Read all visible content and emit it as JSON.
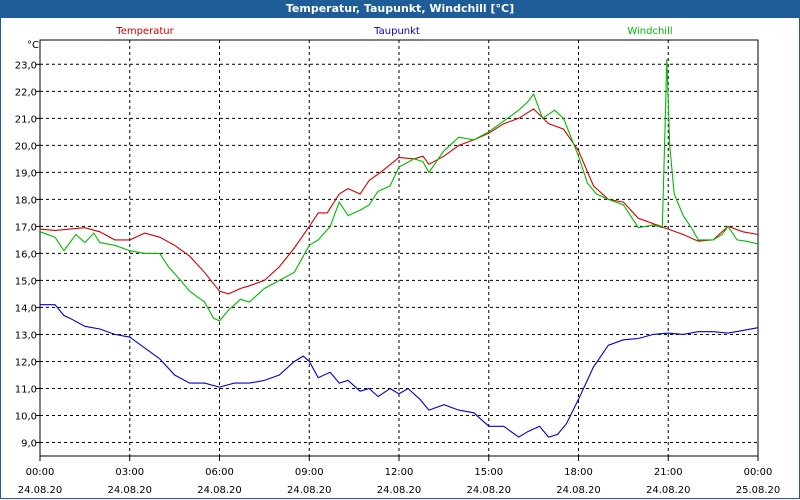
{
  "window": {
    "title": "Temperatur, Taupunkt, Windchill [°C]"
  },
  "chart_data": {
    "type": "line",
    "unit": "°C",
    "legend_placement": "top",
    "grid": true,
    "xlim": [
      0,
      24
    ],
    "ylim": [
      8.5,
      23.9
    ],
    "y_ticks": [
      "9,0",
      "10,0",
      "11,0",
      "12,0",
      "13,0",
      "14,0",
      "15,0",
      "16,0",
      "17,0",
      "18,0",
      "19,0",
      "20,0",
      "21,0",
      "22,0",
      "23,0"
    ],
    "y_tick_values": [
      9,
      10,
      11,
      12,
      13,
      14,
      15,
      16,
      17,
      18,
      19,
      20,
      21,
      22,
      23
    ],
    "x_ticks": [
      {
        "time": "00:00",
        "date": "24.08.20"
      },
      {
        "time": "03:00",
        "date": "24.08.20"
      },
      {
        "time": "06:00",
        "date": "24.08.20"
      },
      {
        "time": "09:00",
        "date": "24.08.20"
      },
      {
        "time": "12:00",
        "date": "24.08.20"
      },
      {
        "time": "15:00",
        "date": "24.08.20"
      },
      {
        "time": "18:00",
        "date": "24.08.20"
      },
      {
        "time": "21:00",
        "date": "24.08.20"
      },
      {
        "time": "00:00",
        "date": "25.08.20"
      }
    ],
    "x_tick_values": [
      0,
      3,
      6,
      9,
      12,
      15,
      18,
      21,
      24
    ],
    "series": [
      {
        "name": "Temperatur",
        "color": "#d40000",
        "points": [
          [
            0,
            16.9
          ],
          [
            0.5,
            16.85
          ],
          [
            1,
            16.9
          ],
          [
            1.5,
            16.95
          ],
          [
            2,
            16.8
          ],
          [
            2.5,
            16.5
          ],
          [
            3,
            16.5
          ],
          [
            3.5,
            16.75
          ],
          [
            4,
            16.6
          ],
          [
            4.5,
            16.3
          ],
          [
            5,
            15.9
          ],
          [
            5.5,
            15.3
          ],
          [
            6,
            14.6
          ],
          [
            6.3,
            14.5
          ],
          [
            6.7,
            14.7
          ],
          [
            7,
            14.8
          ],
          [
            7.5,
            15.0
          ],
          [
            8,
            15.5
          ],
          [
            8.5,
            16.2
          ],
          [
            9,
            17.0
          ],
          [
            9.3,
            17.5
          ],
          [
            9.6,
            17.5
          ],
          [
            10,
            18.2
          ],
          [
            10.3,
            18.4
          ],
          [
            10.7,
            18.2
          ],
          [
            11,
            18.7
          ],
          [
            11.5,
            19.1
          ],
          [
            12,
            19.55
          ],
          [
            12.5,
            19.5
          ],
          [
            12.8,
            19.6
          ],
          [
            13,
            19.3
          ],
          [
            13.5,
            19.6
          ],
          [
            14,
            20.0
          ],
          [
            14.5,
            20.2
          ],
          [
            15,
            20.45
          ],
          [
            15.5,
            20.8
          ],
          [
            16,
            21.0
          ],
          [
            16.5,
            21.35
          ],
          [
            17,
            20.8
          ],
          [
            17.5,
            20.6
          ],
          [
            18,
            19.8
          ],
          [
            18.5,
            18.5
          ],
          [
            19,
            18.0
          ],
          [
            19.5,
            17.9
          ],
          [
            20,
            17.3
          ],
          [
            20.5,
            17.1
          ],
          [
            21,
            16.9
          ],
          [
            21.5,
            16.7
          ],
          [
            22,
            16.45
          ],
          [
            22.5,
            16.5
          ],
          [
            23,
            17.0
          ],
          [
            23.5,
            16.8
          ],
          [
            24,
            16.7
          ]
        ]
      },
      {
        "name": "Taupunkt",
        "color": "#0000cc",
        "points": [
          [
            0,
            14.1
          ],
          [
            0.5,
            14.1
          ],
          [
            0.8,
            13.7
          ],
          [
            1,
            13.6
          ],
          [
            1.5,
            13.3
          ],
          [
            2,
            13.2
          ],
          [
            2.5,
            13.0
          ],
          [
            3,
            12.9
          ],
          [
            3.5,
            12.5
          ],
          [
            4,
            12.1
          ],
          [
            4.5,
            11.5
          ],
          [
            5,
            11.2
          ],
          [
            5.5,
            11.2
          ],
          [
            6,
            11.05
          ],
          [
            6.5,
            11.2
          ],
          [
            7,
            11.2
          ],
          [
            7.5,
            11.3
          ],
          [
            8,
            11.5
          ],
          [
            8.5,
            12.0
          ],
          [
            8.8,
            12.2
          ],
          [
            9,
            12.0
          ],
          [
            9.3,
            11.4
          ],
          [
            9.7,
            11.6
          ],
          [
            10,
            11.2
          ],
          [
            10.3,
            11.3
          ],
          [
            10.7,
            10.9
          ],
          [
            11,
            11.0
          ],
          [
            11.3,
            10.7
          ],
          [
            11.7,
            11.0
          ],
          [
            12,
            10.8
          ],
          [
            12.3,
            11.0
          ],
          [
            12.7,
            10.6
          ],
          [
            13,
            10.2
          ],
          [
            13.5,
            10.4
          ],
          [
            14,
            10.2
          ],
          [
            14.5,
            10.1
          ],
          [
            15,
            9.6
          ],
          [
            15.5,
            9.6
          ],
          [
            16,
            9.2
          ],
          [
            16.3,
            9.4
          ],
          [
            16.7,
            9.6
          ],
          [
            17,
            9.2
          ],
          [
            17.3,
            9.3
          ],
          [
            17.6,
            9.7
          ],
          [
            18,
            10.6
          ],
          [
            18.5,
            11.8
          ],
          [
            19,
            12.6
          ],
          [
            19.5,
            12.8
          ],
          [
            20,
            12.85
          ],
          [
            20.5,
            13.0
          ],
          [
            21,
            13.05
          ],
          [
            21.5,
            13.0
          ],
          [
            22,
            13.1
          ],
          [
            22.5,
            13.1
          ],
          [
            23,
            13.05
          ],
          [
            23.5,
            13.15
          ],
          [
            24,
            13.25
          ]
        ]
      },
      {
        "name": "Windchill",
        "color": "#00bb00",
        "points": [
          [
            0,
            16.8
          ],
          [
            0.5,
            16.6
          ],
          [
            0.8,
            16.1
          ],
          [
            1.2,
            16.7
          ],
          [
            1.5,
            16.4
          ],
          [
            1.8,
            16.75
          ],
          [
            2,
            16.4
          ],
          [
            2.5,
            16.3
          ],
          [
            3,
            16.1
          ],
          [
            3.5,
            16.0
          ],
          [
            4,
            16.0
          ],
          [
            4.3,
            15.5
          ],
          [
            4.7,
            15.0
          ],
          [
            5,
            14.6
          ],
          [
            5.5,
            14.2
          ],
          [
            5.8,
            13.6
          ],
          [
            6,
            13.5
          ],
          [
            6.3,
            13.9
          ],
          [
            6.7,
            14.3
          ],
          [
            7,
            14.2
          ],
          [
            7.5,
            14.7
          ],
          [
            8,
            15.0
          ],
          [
            8.5,
            15.3
          ],
          [
            9,
            16.3
          ],
          [
            9.3,
            16.5
          ],
          [
            9.7,
            17.0
          ],
          [
            10,
            17.9
          ],
          [
            10.3,
            17.4
          ],
          [
            10.7,
            17.6
          ],
          [
            11,
            17.8
          ],
          [
            11.3,
            18.3
          ],
          [
            11.7,
            18.5
          ],
          [
            12,
            19.2
          ],
          [
            12.5,
            19.5
          ],
          [
            12.8,
            19.4
          ],
          [
            13,
            19.0
          ],
          [
            13.5,
            19.8
          ],
          [
            14,
            20.3
          ],
          [
            14.5,
            20.2
          ],
          [
            15,
            20.5
          ],
          [
            15.5,
            20.9
          ],
          [
            16,
            21.3
          ],
          [
            16.3,
            21.6
          ],
          [
            16.5,
            21.9
          ],
          [
            16.8,
            21.0
          ],
          [
            17.2,
            21.3
          ],
          [
            17.5,
            21.0
          ],
          [
            18,
            19.6
          ],
          [
            18.3,
            18.6
          ],
          [
            18.6,
            18.2
          ],
          [
            19,
            18.0
          ],
          [
            19.5,
            17.8
          ],
          [
            20,
            16.95
          ],
          [
            20.5,
            17.05
          ],
          [
            20.8,
            16.95
          ],
          [
            20.9,
            21.0
          ],
          [
            20.95,
            23.2
          ],
          [
            21.05,
            20.0
          ],
          [
            21.2,
            18.2
          ],
          [
            21.5,
            17.4
          ],
          [
            21.8,
            16.9
          ],
          [
            22,
            16.5
          ],
          [
            22.5,
            16.5
          ],
          [
            22.8,
            16.7
          ],
          [
            23,
            17.0
          ],
          [
            23.3,
            16.5
          ],
          [
            23.6,
            16.45
          ],
          [
            24,
            16.35
          ]
        ]
      }
    ]
  }
}
